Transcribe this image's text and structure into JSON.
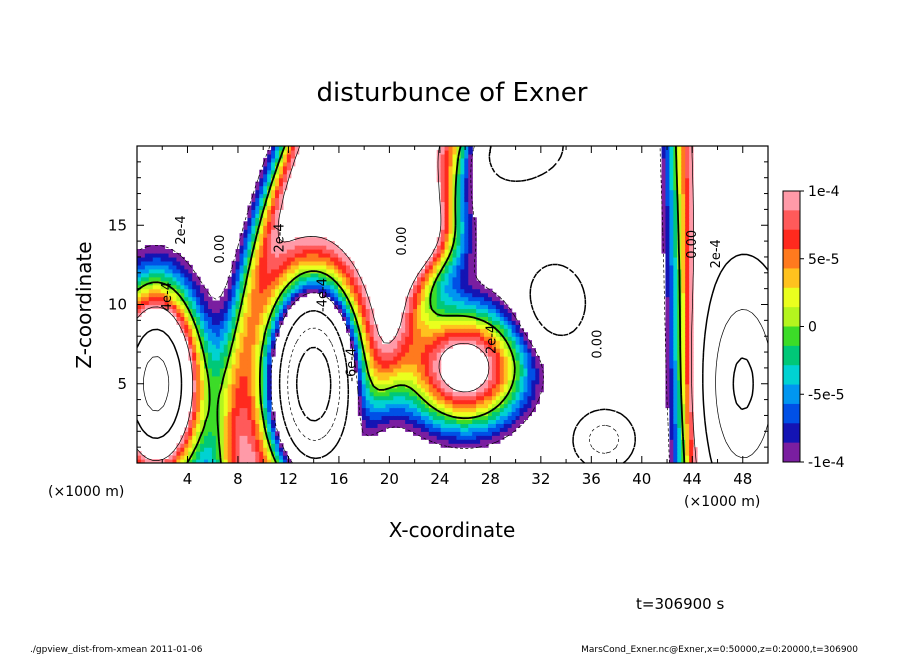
{
  "chart_data": {
    "type": "heatmap",
    "title": "disturbunce of Exner",
    "xlabel": "X-coordinate",
    "ylabel": "Z-coordinate",
    "x_unit": "(×1000 m)",
    "xlim": [
      0,
      50
    ],
    "ylim": [
      0,
      20
    ],
    "x_ticks": [
      4,
      8,
      12,
      16,
      20,
      24,
      28,
      32,
      36,
      40,
      44,
      48
    ],
    "y_ticks": [
      5,
      10,
      15
    ],
    "colorbar": {
      "range": [
        -0.0001,
        0.0001
      ],
      "tick_labels": [
        "1e-4",
        "5e-5",
        "0",
        "-5e-5",
        "-1e-4"
      ],
      "tick_values": [
        0.0001,
        5e-05,
        0,
        -5e-05,
        -0.0001
      ],
      "colors": [
        "#ff9aa8",
        "#ff5a5a",
        "#ff2a1e",
        "#ff7a1e",
        "#ffc21e",
        "#eaff1e",
        "#b4f51e",
        "#3cdc28",
        "#00c878",
        "#00d2d2",
        "#0096f0",
        "#0050e6",
        "#1414b4",
        "#7a1ea0"
      ]
    },
    "contour_labels": [
      {
        "text": "0.00",
        "x": 6.9,
        "z": 13.5
      },
      {
        "text": "0.00",
        "x": 21.3,
        "z": 14.0
      },
      {
        "text": "0.00",
        "x": 44.3,
        "z": 13.8
      },
      {
        "text": "0.00",
        "x": 36.8,
        "z": 7.5
      },
      {
        "text": "2e-4",
        "x": 3.8,
        "z": 14.7
      },
      {
        "text": "4e-4",
        "x": 2.7,
        "z": 10.5
      },
      {
        "text": "2e-4",
        "x": 11.6,
        "z": 14.2
      },
      {
        "text": "-4e-4",
        "x": 15.0,
        "z": 10.6
      },
      {
        "text": "-6e-4",
        "x": 17.3,
        "z": 6.2
      },
      {
        "text": "2e-4",
        "x": 28.4,
        "z": 7.8
      },
      {
        "text": "2e-4",
        "x": 46.2,
        "z": 13.2
      }
    ]
  },
  "time_label": "t=306900 s",
  "footer": {
    "left": "./gpview_dist-from-xmean  2011-01-06",
    "right": "MarsCond_Exner.nc@Exner,x=0:50000,z=0:20000,t=306900"
  }
}
